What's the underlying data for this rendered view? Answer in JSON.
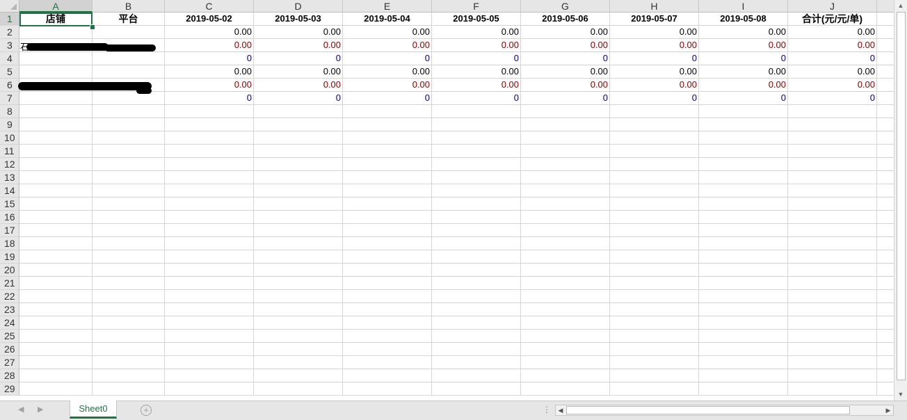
{
  "app": {
    "name": "Spreadsheet"
  },
  "columns": [
    "A",
    "B",
    "C",
    "D",
    "E",
    "F",
    "G",
    "H",
    "I",
    "J"
  ],
  "selected_column": "A",
  "selected_row": "1",
  "header_row": [
    "店铺",
    "平台",
    "2019-05-02",
    "2019-05-03",
    "2019-05-04",
    "2019-05-05",
    "2019-05-06",
    "2019-05-07",
    "2019-05-08",
    "合计(元/元/单)"
  ],
  "data_rows": [
    {
      "row": "2",
      "style": "black",
      "values": [
        "0.00",
        "0.00",
        "0.00",
        "0.00",
        "0.00",
        "0.00",
        "0.00",
        "0.00"
      ]
    },
    {
      "row": "3",
      "style": "red",
      "values": [
        "0.00",
        "0.00",
        "0.00",
        "0.00",
        "0.00",
        "0.00",
        "0.00",
        "0.00"
      ]
    },
    {
      "row": "4",
      "style": "blue",
      "values": [
        "0",
        "0",
        "0",
        "0",
        "0",
        "0",
        "0",
        "0"
      ]
    },
    {
      "row": "5",
      "style": "black",
      "values": [
        "0.00",
        "0.00",
        "0.00",
        "0.00",
        "0.00",
        "0.00",
        "0.00",
        "0.00"
      ]
    },
    {
      "row": "6",
      "style": "red",
      "values": [
        "0.00",
        "0.00",
        "0.00",
        "0.00",
        "0.00",
        "0.00",
        "0.00",
        "0.00"
      ]
    },
    {
      "row": "7",
      "style": "blue",
      "values": [
        "0",
        "0",
        "0",
        "0",
        "0",
        "0",
        "0",
        "0"
      ]
    }
  ],
  "row_numbers": [
    "1",
    "2",
    "3",
    "4",
    "5",
    "6",
    "7",
    "8",
    "9",
    "10",
    "11",
    "12",
    "13",
    "14",
    "15",
    "16",
    "17",
    "18",
    "19",
    "20",
    "21",
    "22",
    "23",
    "24",
    "25",
    "26",
    "27",
    "28",
    "29"
  ],
  "sheet_tab": {
    "label": "Sheet0"
  },
  "add_sheet_label": "+",
  "colors": {
    "accent": "#217346",
    "red_text": "#8b0000",
    "blue_text": "#00008b"
  }
}
